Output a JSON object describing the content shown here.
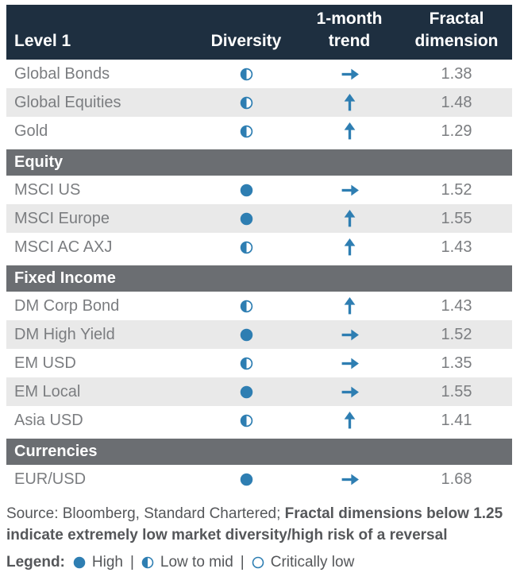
{
  "chart_data": {
    "type": "table",
    "columns": [
      "Level 1",
      "Diversity",
      "1-month trend",
      "Fractal dimension"
    ],
    "sections": [
      {
        "name": null,
        "rows": [
          {
            "label": "Global Bonds",
            "diversity": "low-to-mid",
            "trend": "sideways",
            "fractal_dimension": 1.38
          },
          {
            "label": "Global Equities",
            "diversity": "low-to-mid",
            "trend": "up",
            "fractal_dimension": 1.48
          },
          {
            "label": "Gold",
            "diversity": "low-to-mid",
            "trend": "up",
            "fractal_dimension": 1.29
          }
        ]
      },
      {
        "name": "Equity",
        "rows": [
          {
            "label": "MSCI US",
            "diversity": "high",
            "trend": "sideways",
            "fractal_dimension": 1.52
          },
          {
            "label": "MSCI Europe",
            "diversity": "high",
            "trend": "up",
            "fractal_dimension": 1.55
          },
          {
            "label": "MSCI AC AXJ",
            "diversity": "low-to-mid",
            "trend": "up",
            "fractal_dimension": 1.43
          }
        ]
      },
      {
        "name": "Fixed Income",
        "rows": [
          {
            "label": "DM Corp Bond",
            "diversity": "low-to-mid",
            "trend": "up",
            "fractal_dimension": 1.43
          },
          {
            "label": "DM High Yield",
            "diversity": "high",
            "trend": "sideways",
            "fractal_dimension": 1.52
          },
          {
            "label": "EM USD",
            "diversity": "low-to-mid",
            "trend": "sideways",
            "fractal_dimension": 1.35
          },
          {
            "label": "EM Local",
            "diversity": "high",
            "trend": "sideways",
            "fractal_dimension": 1.55
          },
          {
            "label": "Asia USD",
            "diversity": "low-to-mid",
            "trend": "up",
            "fractal_dimension": 1.41
          }
        ]
      },
      {
        "name": "Currencies",
        "rows": [
          {
            "label": "EUR/USD",
            "diversity": "high",
            "trend": "sideways",
            "fractal_dimension": 1.68
          }
        ]
      }
    ]
  },
  "header": {
    "cells": [
      {
        "lines": [
          "Level 1"
        ]
      },
      {
        "lines": [
          "Diversity"
        ]
      },
      {
        "lines": [
          "1-month",
          "trend"
        ]
      },
      {
        "lines": [
          "Fractal",
          "dimension"
        ]
      }
    ]
  },
  "footnote": {
    "source_normal": "Source: Bloomberg, Standard Chartered; ",
    "note_bold": "Fractal dimensions below 1.25 indicate extremely low market diversity/high risk of a reversal"
  },
  "legend": {
    "title": "Legend:",
    "separator": "|",
    "items": [
      {
        "symbol": "circle-filled",
        "meaning": "high",
        "label": "High"
      },
      {
        "symbol": "circle-half",
        "meaning": "low-to-mid",
        "label": "Low to mid"
      },
      {
        "symbol": "circle-outline",
        "meaning": "critically-low",
        "label": "Critically low"
      }
    ]
  },
  "colors": {
    "header_bg": "#1e2f40",
    "section_bg": "#6b6e72",
    "row_alt_bg": "#e9e9e9",
    "accent_blue": "#2e7eb2",
    "body_text": "#7b7d80",
    "footnote_text": "#55575a",
    "header_text": "#ffffff"
  }
}
